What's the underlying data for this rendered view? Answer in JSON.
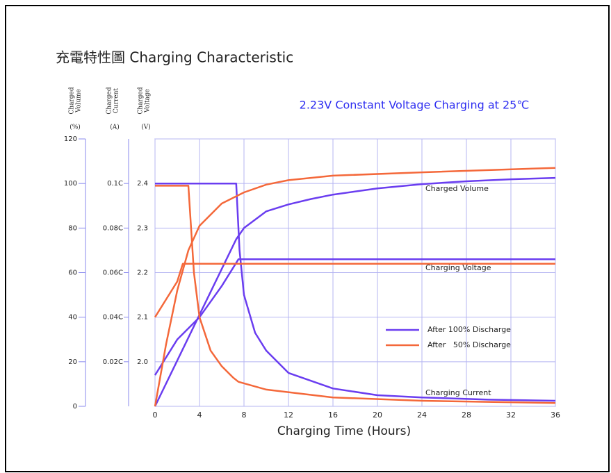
{
  "chart_data": {
    "type": "line",
    "title": "充電特性圖 Charging Characteristic",
    "subtitle": "2.23V Constant Voltage Charging at 25℃",
    "x_label": "Charging Time (Hours)",
    "xlim": [
      0,
      36
    ],
    "xticks": [
      0,
      4,
      8,
      12,
      16,
      20,
      24,
      28,
      32,
      36
    ],
    "grid": true,
    "axes": {
      "volume": {
        "label": [
          "Charged",
          "Volume"
        ],
        "unit": "(%)",
        "lim": [
          0,
          120
        ],
        "ticks": [
          0,
          20,
          40,
          60,
          80,
          100,
          120
        ]
      },
      "current": {
        "label": [
          "Charged",
          "Current"
        ],
        "unit": "(A)",
        "lim": [
          0,
          0.12
        ],
        "ticks": [
          {
            "value": 0.02,
            "label": "0.02C"
          },
          {
            "value": 0.04,
            "label": "0.04C"
          },
          {
            "value": 0.06,
            "label": "0.06C"
          },
          {
            "value": 0.08,
            "label": "0.08C"
          },
          {
            "value": 0.1,
            "label": "0.1C"
          }
        ]
      },
      "voltage": {
        "label": [
          "Charged",
          "Voltage"
        ],
        "unit": "(V)",
        "lim": [
          1.9,
          2.5
        ],
        "ticks": [
          {
            "value": 2,
            "label": "2.0"
          },
          2.1,
          2.2,
          2.3,
          2.4
        ]
      }
    },
    "series": [
      {
        "name": "After 100% Discharge",
        "color": "#6a3df0",
        "volume": {
          "x": [
            0,
            7.3,
            8,
            10,
            12,
            14,
            16,
            20,
            24,
            28,
            32,
            36
          ],
          "values": [
            0,
            75,
            80,
            87.5,
            90.6,
            93,
            95,
            97.8,
            99.7,
            101,
            101.9,
            102.5
          ]
        },
        "current": {
          "x": [
            0,
            7.3,
            7.6,
            8,
            9,
            10,
            12,
            16,
            20,
            24,
            30,
            36
          ],
          "values": [
            0.1,
            0.1,
            0.07,
            0.05,
            0.033,
            0.025,
            0.015,
            0.008,
            0.005,
            0.004,
            0.003,
            0.0025
          ]
        },
        "voltage": {
          "x": [
            0,
            2,
            4,
            6,
            7.5,
            36
          ],
          "values": [
            1.97,
            2.05,
            2.1,
            2.17,
            2.23,
            2.23
          ]
        }
      },
      {
        "name": "After   50% Discharge",
        "color": "#f4683a",
        "volume": {
          "x": [
            0,
            1,
            2,
            3,
            4,
            6,
            8,
            10,
            12,
            16,
            24,
            36
          ],
          "values": [
            0,
            28,
            52,
            70,
            81,
            91,
            96,
            99.5,
            101.5,
            103.5,
            105,
            107
          ]
        },
        "current": {
          "x": [
            0,
            3,
            3.5,
            4,
            5,
            6,
            7,
            7.5,
            10,
            16,
            24,
            36
          ],
          "values": [
            0.099,
            0.099,
            0.06,
            0.04,
            0.025,
            0.018,
            0.013,
            0.011,
            0.0075,
            0.004,
            0.0025,
            0.0015
          ]
        },
        "voltage": {
          "x": [
            0,
            1,
            2,
            2.5,
            36
          ],
          "values": [
            2.1,
            2.14,
            2.18,
            2.22,
            2.22
          ]
        }
      }
    ],
    "annotations": [
      "Charged Volume",
      "Charging Voltage",
      "Charging Current"
    ]
  }
}
